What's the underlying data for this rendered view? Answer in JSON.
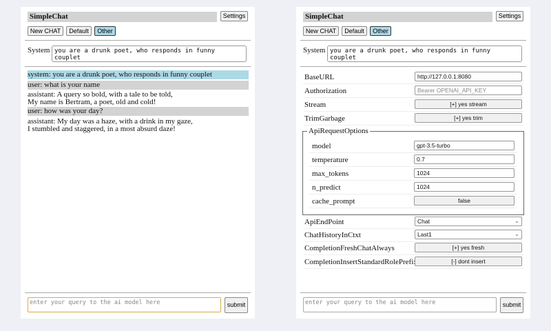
{
  "colors": {
    "background": "#eef0f6",
    "system_msg": "#add8e6",
    "user_msg": "#d3d3d3",
    "selected_button": "#add8e6",
    "focus_border": "#e0a840"
  },
  "left": {
    "title": "SimpleChat",
    "settings": "Settings",
    "buttons": [
      "New CHAT",
      "Default",
      "Other"
    ],
    "selected_button": "Other",
    "system_label": "System",
    "system_value": "you are a drunk poet, who responds in funny couplet",
    "messages": [
      {
        "role": "system",
        "lines": [
          "system: you are a drunk poet, who responds in funny couplet"
        ]
      },
      {
        "role": "user",
        "lines": [
          "user: what is your name"
        ]
      },
      {
        "role": "assistant",
        "lines": [
          "assistant: A query so bold, with a tale to be told,",
          "My name is Bertram, a poet, old and cold!"
        ]
      },
      {
        "role": "user",
        "lines": [
          "user: how was your day?"
        ]
      },
      {
        "role": "assistant",
        "lines": [
          "assistant: My day was a haze, with a drink in my gaze,",
          "I stumbled and staggered, in a most absurd daze!"
        ]
      }
    ],
    "query_placeholder": "enter your query to the ai model here",
    "submit": "submit"
  },
  "right": {
    "title": "SimpleChat",
    "settings": "Settings",
    "buttons": [
      "New CHAT",
      "Default",
      "Other"
    ],
    "selected_button": "Other",
    "system_label": "System",
    "system_value": "you are a drunk poet, who responds in funny couplet",
    "settings_rows": [
      {
        "label": "BaseURL",
        "value": "http://127.0.0.1:8080"
      },
      {
        "label": "Authorization",
        "placeholder": "Bearer OPENAI_API_KEY"
      },
      {
        "label": "Stream",
        "value": "[+] yes stream"
      },
      {
        "label": "TrimGarbage",
        "value": "[+] yes trim"
      }
    ],
    "api_options": {
      "legend": "ApiRequestOptions",
      "rows": [
        {
          "label": "model",
          "value": "gpt-3.5-turbo"
        },
        {
          "label": "temperature",
          "value": "0.7"
        },
        {
          "label": "max_tokens",
          "value": "1024"
        },
        {
          "label": "n_predict",
          "value": "1024"
        },
        {
          "label": "cache_prompt",
          "value": "false"
        }
      ]
    },
    "bottom_rows": [
      {
        "label": "ApiEndPoint",
        "value": "Chat"
      },
      {
        "label": "ChatHistoryInCtxt",
        "value": "Last1"
      },
      {
        "label": "CompletionFreshChatAlways",
        "value": "[+] yes fresh"
      },
      {
        "label": "CompletionInsertStandardRolePrefix",
        "value": "[-] dont insert"
      }
    ],
    "query_placeholder": "enter your query to the ai model here",
    "submit": "submit"
  }
}
